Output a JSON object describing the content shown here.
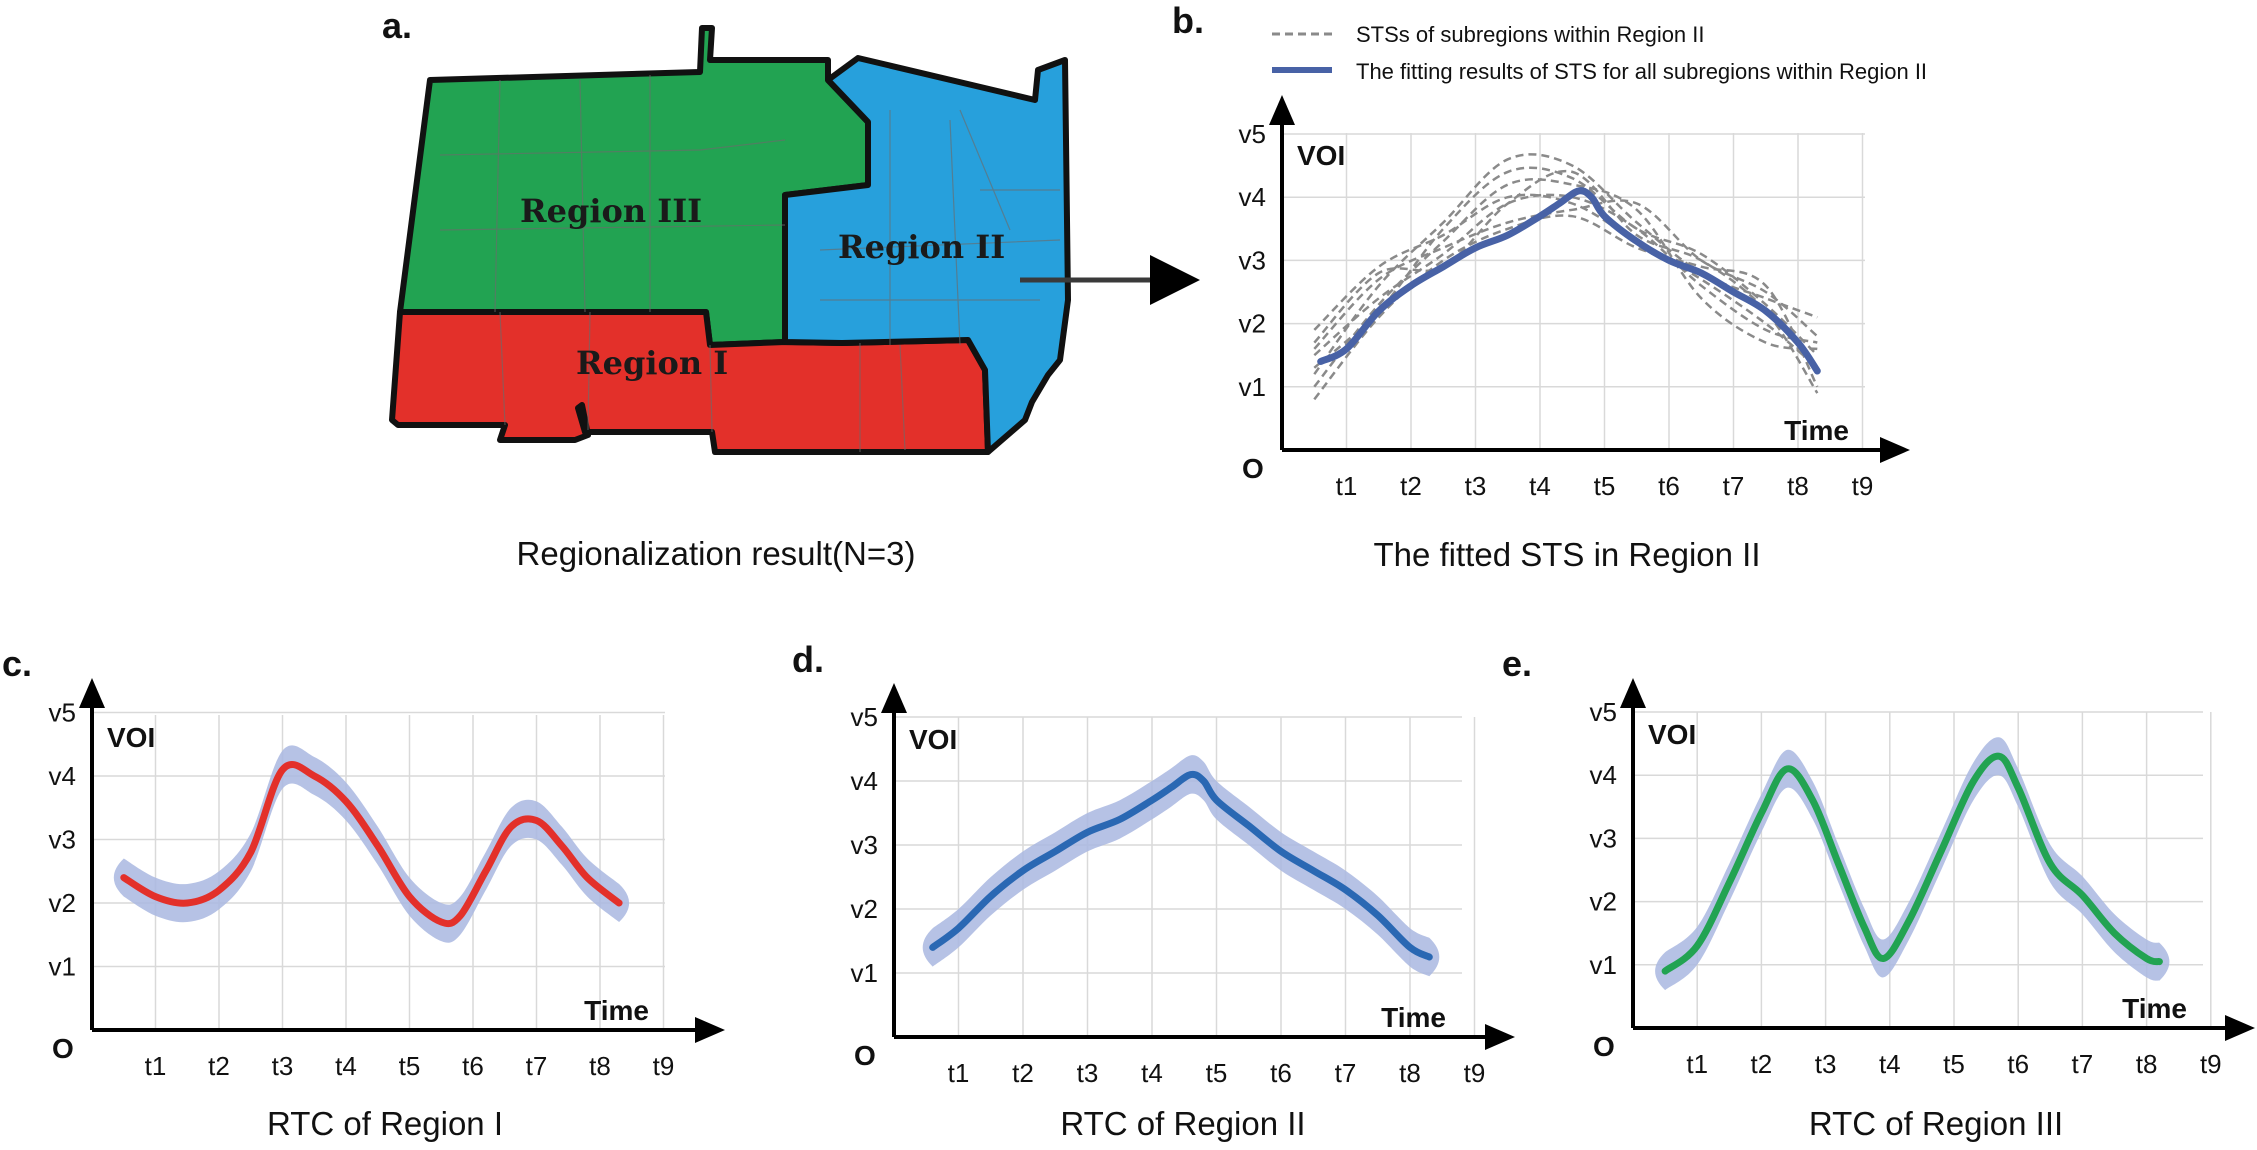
{
  "colors": {
    "region_I": "#e3302a",
    "region_II": "#27a0dc",
    "region_III": "#22a352",
    "fit_line": "#4862a6",
    "dashed": "#8a8a8a",
    "band": "#a9b7e0",
    "rtc_II": "#2a68b3"
  },
  "panel_a": {
    "label": "a.",
    "caption": "Regionalization result(N=3)",
    "regions": [
      "Region I",
      "Region II",
      "Region III"
    ]
  },
  "panel_b": {
    "label": "b.",
    "caption": "The fitted STS in Region II",
    "legend": {
      "dashed": "STSs of subregions within Region II",
      "solid": "The fitting results of STS for all subregions within Region II"
    }
  },
  "panel_c": {
    "label": "c.",
    "caption": "RTC of Region I"
  },
  "panel_d": {
    "label": "d.",
    "caption": "RTC of Region II"
  },
  "panel_e": {
    "label": "e.",
    "caption": "RTC of Region III"
  },
  "axes": {
    "y_title": "VOI",
    "x_title": "Time",
    "origin": "O",
    "x_ticks": [
      "t1",
      "t2",
      "t3",
      "t4",
      "t5",
      "t6",
      "t7",
      "t8",
      "t9"
    ],
    "y_ticks": [
      "v1",
      "v2",
      "v3",
      "v4",
      "v5"
    ]
  },
  "chart_data": [
    {
      "panel": "b",
      "type": "line",
      "x_categories": [
        "t1",
        "t2",
        "t3",
        "t4",
        "t5",
        "t6",
        "t7",
        "t8",
        "t9"
      ],
      "y_categories": [
        "v1",
        "v2",
        "v3",
        "v4",
        "v5"
      ],
      "series": [
        {
          "name": "The fitting results of STS for all subregions within Region II",
          "style": "solid",
          "x": [
            0.6,
            1.0,
            1.5,
            2.0,
            2.5,
            3.0,
            3.5,
            4.0,
            4.3,
            4.6,
            4.8,
            5.0,
            5.5,
            6.0,
            6.5,
            7.0,
            7.5,
            8.0,
            8.3
          ],
          "y": [
            1.4,
            1.6,
            2.2,
            2.6,
            2.9,
            3.2,
            3.4,
            3.7,
            3.9,
            4.1,
            4.0,
            3.7,
            3.3,
            3.0,
            2.8,
            2.5,
            2.2,
            1.7,
            1.25
          ]
        },
        {
          "style": "dashed",
          "x": [
            0.5,
            1.5,
            2.5,
            3.5,
            4.5,
            5.5,
            6.5,
            7.5,
            8.3
          ],
          "y": [
            1.7,
            2.8,
            2.9,
            3.9,
            4.4,
            3.4,
            3.0,
            2.2,
            0.9
          ]
        },
        {
          "style": "dashed",
          "x": [
            0.5,
            1.5,
            2.5,
            3.5,
            4.5,
            5.5,
            6.5,
            7.5,
            8.3
          ],
          "y": [
            1.2,
            2.6,
            3.6,
            4.6,
            4.5,
            3.6,
            2.8,
            2.4,
            2.1
          ]
        },
        {
          "style": "dashed",
          "x": [
            0.5,
            1.5,
            2.5,
            3.5,
            4.5,
            5.5,
            6.5,
            7.5,
            8.3
          ],
          "y": [
            1.0,
            2.3,
            3.3,
            4.2,
            4.2,
            3.8,
            2.4,
            1.7,
            1.6
          ]
        },
        {
          "style": "dashed",
          "x": [
            0.5,
            1.5,
            2.5,
            3.5,
            4.5,
            5.5,
            6.5,
            7.5,
            8.3
          ],
          "y": [
            0.8,
            2.1,
            3.0,
            3.5,
            3.7,
            3.2,
            2.9,
            2.6,
            1.0
          ]
        },
        {
          "style": "dashed",
          "x": [
            0.5,
            1.5,
            2.5,
            3.5,
            4.5,
            5.5,
            6.5,
            7.5,
            8.3
          ],
          "y": [
            1.5,
            2.4,
            3.1,
            3.9,
            4.0,
            3.5,
            2.6,
            1.9,
            1.7
          ]
        },
        {
          "style": "dashed",
          "x": [
            0.5,
            1.5,
            2.5,
            3.5,
            4.5,
            5.5,
            6.5,
            7.5,
            8.3
          ],
          "y": [
            1.9,
            2.9,
            3.4,
            4.0,
            3.9,
            3.3,
            2.7,
            2.0,
            1.3
          ]
        },
        {
          "style": "dashed",
          "x": [
            0.5,
            1.5,
            2.5,
            3.5,
            4.5,
            5.5,
            6.5,
            7.5,
            8.3
          ],
          "y": [
            1.3,
            2.2,
            3.5,
            4.4,
            4.3,
            3.5,
            3.1,
            2.3,
            1.5
          ]
        },
        {
          "style": "dashed",
          "x": [
            0.5,
            1.5,
            2.5,
            3.5,
            4.5,
            5.5,
            6.5,
            7.5,
            8.3
          ],
          "y": [
            1.6,
            2.7,
            3.2,
            3.6,
            3.8,
            3.9,
            3.0,
            2.5,
            1.8
          ]
        }
      ]
    },
    {
      "panel": "c",
      "type": "area",
      "x_categories": [
        "t1",
        "t2",
        "t3",
        "t4",
        "t5",
        "t6",
        "t7",
        "t8",
        "t9"
      ],
      "y_categories": [
        "v1",
        "v2",
        "v3",
        "v4",
        "v5"
      ],
      "series": [
        {
          "x": [
            0.5,
            1.0,
            1.5,
            2.0,
            2.5,
            3.0,
            3.5,
            4.0,
            4.5,
            5.0,
            5.5,
            5.8,
            6.2,
            6.6,
            7.0,
            7.4,
            7.8,
            8.3
          ],
          "y": [
            2.4,
            2.1,
            2.0,
            2.2,
            2.8,
            4.1,
            4.0,
            3.6,
            2.9,
            2.1,
            1.7,
            1.8,
            2.5,
            3.2,
            3.3,
            2.9,
            2.4,
            2.0
          ],
          "band": 0.3
        }
      ]
    },
    {
      "panel": "d",
      "type": "area",
      "x_categories": [
        "t1",
        "t2",
        "t3",
        "t4",
        "t5",
        "t6",
        "t7",
        "t8",
        "t9"
      ],
      "y_categories": [
        "v1",
        "v2",
        "v3",
        "v4",
        "v5"
      ],
      "series": [
        {
          "x": [
            0.6,
            1.0,
            1.5,
            2.0,
            2.5,
            3.0,
            3.5,
            4.0,
            4.3,
            4.6,
            4.8,
            5.0,
            5.5,
            6.0,
            6.5,
            7.0,
            7.5,
            8.0,
            8.3
          ],
          "y": [
            1.4,
            1.7,
            2.2,
            2.6,
            2.9,
            3.2,
            3.4,
            3.7,
            3.9,
            4.1,
            4.0,
            3.7,
            3.3,
            2.9,
            2.6,
            2.3,
            1.9,
            1.4,
            1.25
          ],
          "band": 0.3
        }
      ]
    },
    {
      "panel": "e",
      "type": "area",
      "x_categories": [
        "t1",
        "t2",
        "t3",
        "t4",
        "t5",
        "t6",
        "t7",
        "t8",
        "t9"
      ],
      "y_categories": [
        "v1",
        "v2",
        "v3",
        "v4",
        "v5"
      ],
      "series": [
        {
          "x": [
            0.5,
            1.0,
            1.5,
            2.0,
            2.4,
            2.8,
            3.2,
            3.6,
            3.9,
            4.3,
            4.8,
            5.3,
            5.7,
            6.0,
            6.5,
            7.0,
            7.5,
            8.0,
            8.2
          ],
          "y": [
            0.9,
            1.3,
            2.3,
            3.4,
            4.1,
            3.6,
            2.6,
            1.6,
            1.1,
            1.7,
            2.8,
            3.9,
            4.3,
            3.8,
            2.6,
            2.1,
            1.5,
            1.1,
            1.05
          ],
          "band": 0.3
        }
      ]
    }
  ]
}
